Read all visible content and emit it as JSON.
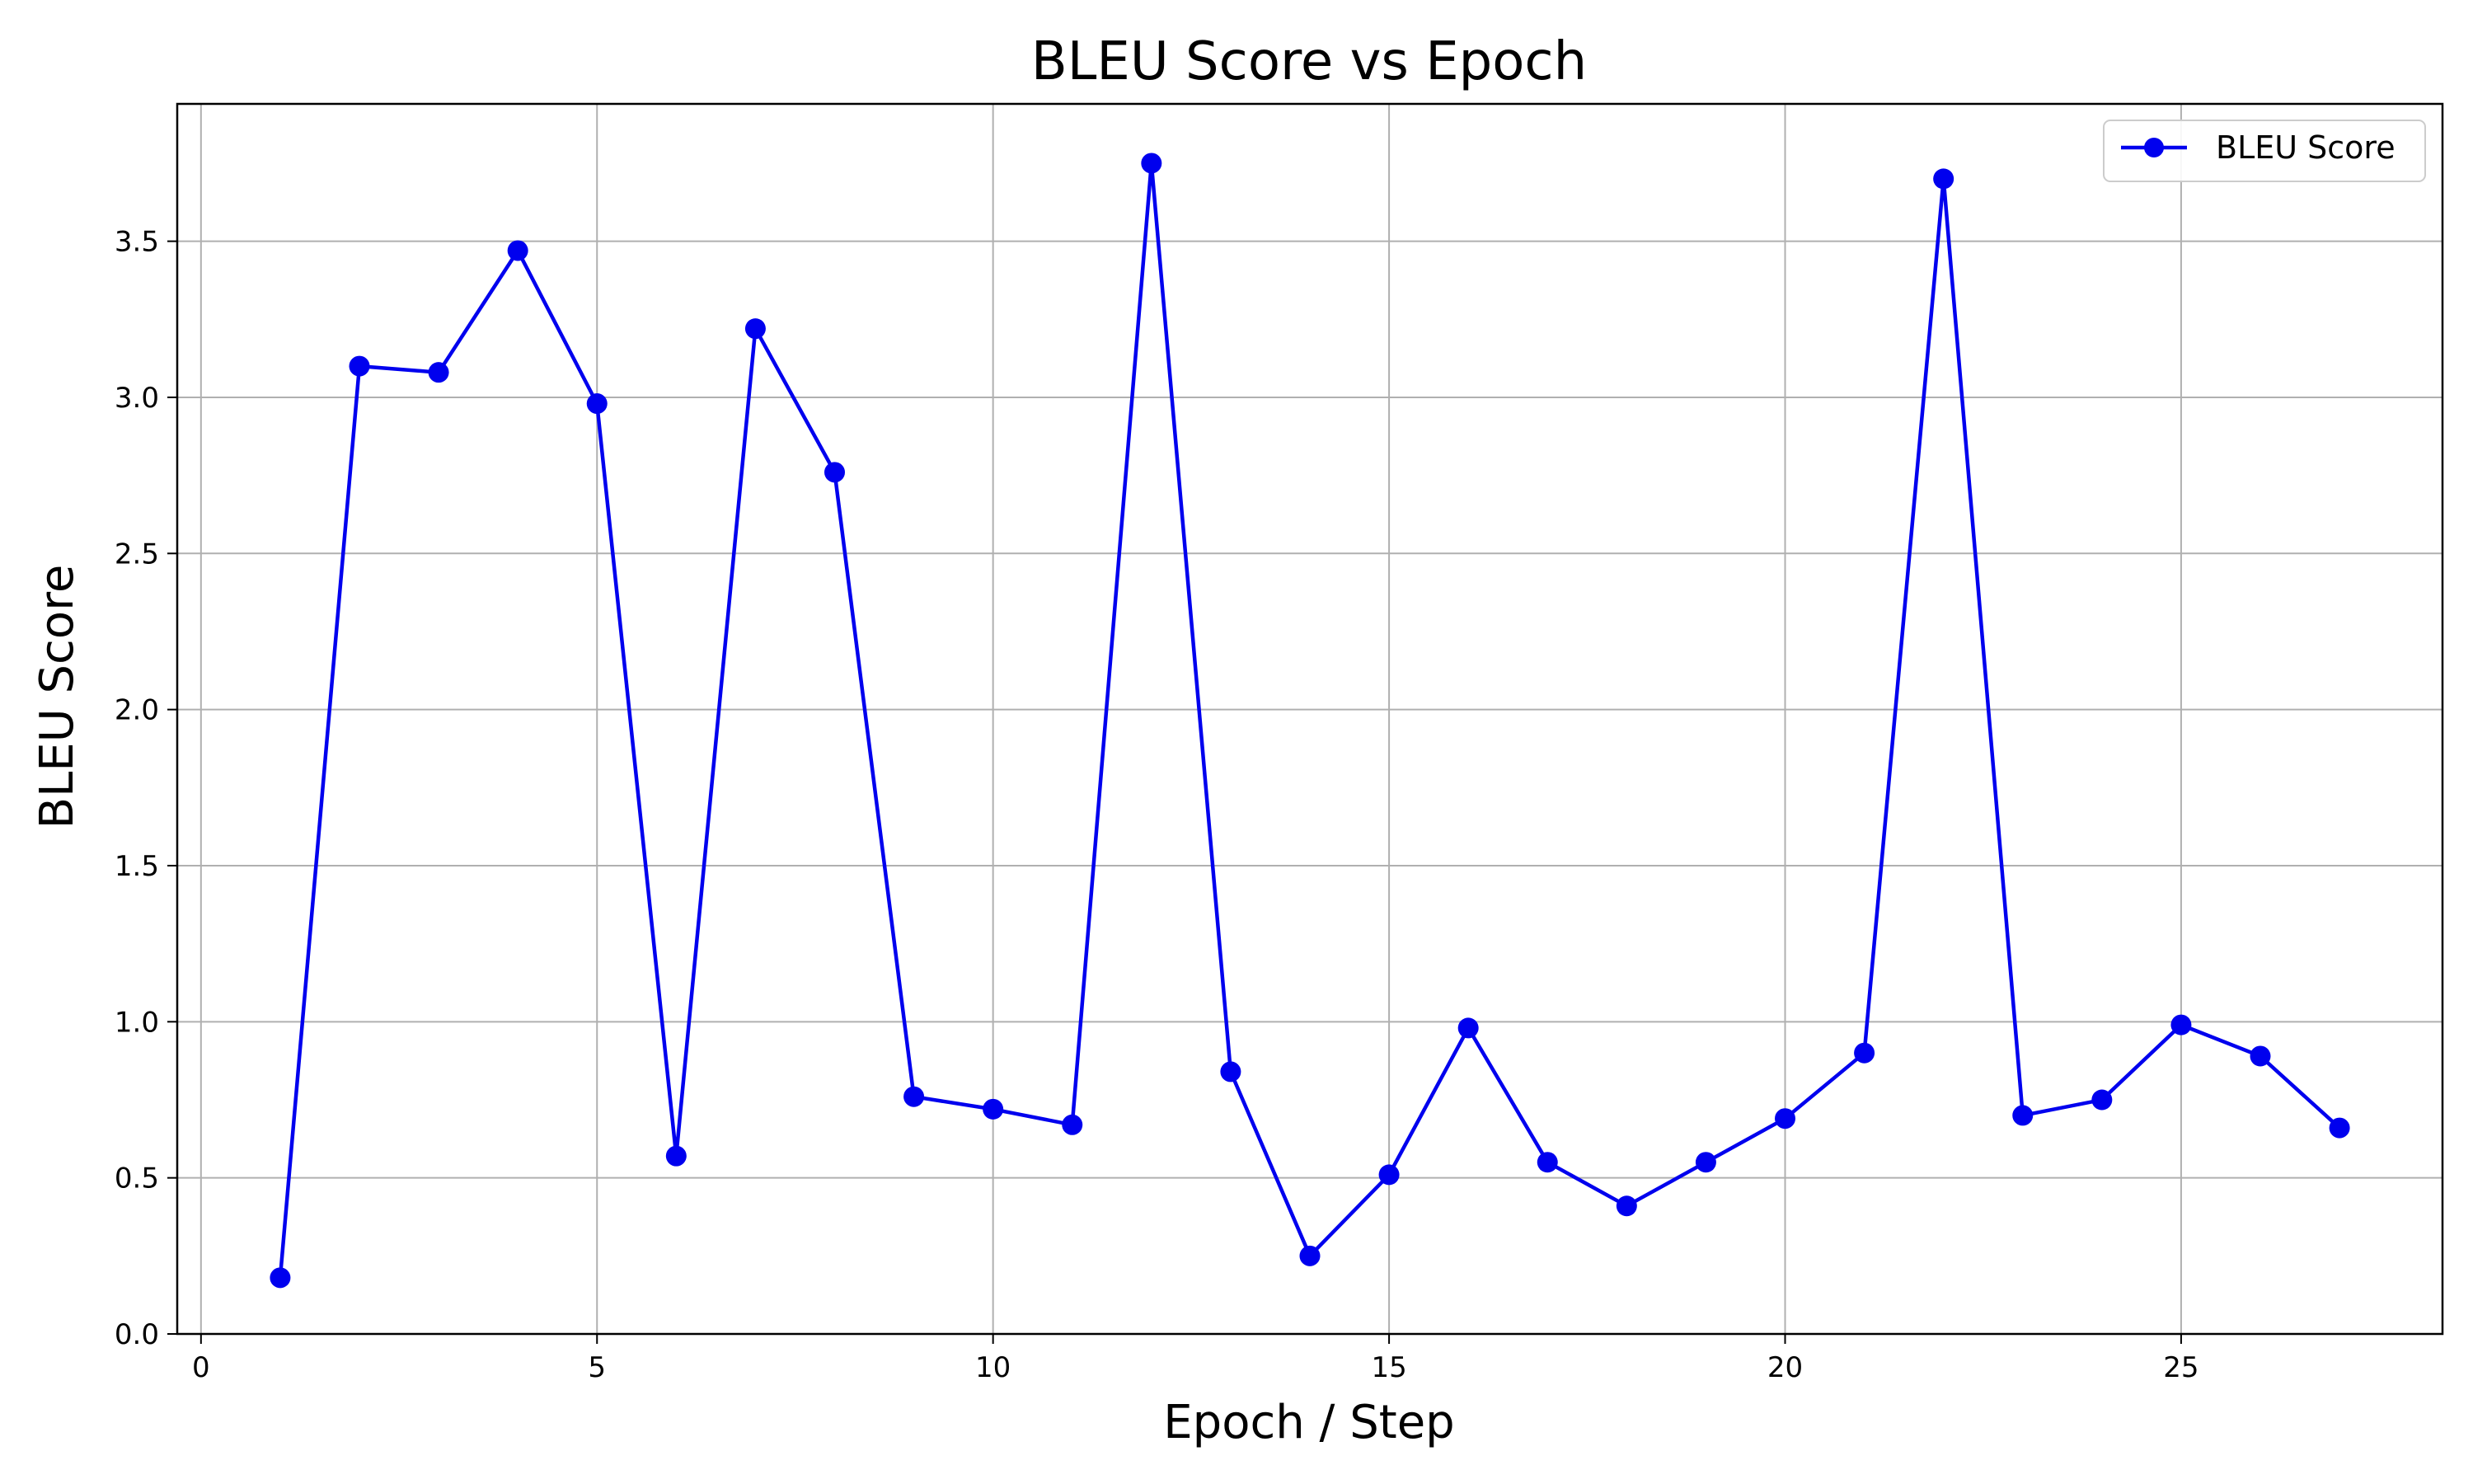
{
  "chart_data": {
    "type": "line",
    "title": "BLEU Score vs Epoch",
    "xlabel": "Epoch / Step",
    "ylabel": "BLEU Score",
    "xlim": [
      -0.3,
      28.3
    ],
    "ylim": [
      0.0,
      3.94
    ],
    "xticks": [
      0,
      5,
      10,
      15,
      20,
      25
    ],
    "yticks": [
      0.0,
      0.5,
      1.0,
      1.5,
      2.0,
      2.5,
      3.0,
      3.5
    ],
    "xtick_labels": [
      "0",
      "5",
      "10",
      "15",
      "20",
      "25"
    ],
    "ytick_labels": [
      "0.0",
      "0.5",
      "1.0",
      "1.5",
      "2.0",
      "2.5",
      "3.0",
      "3.5"
    ],
    "grid": true,
    "legend_position": "top-right",
    "series": [
      {
        "name": "BLEU Score",
        "color": "#0000ee",
        "marker": "circle",
        "x": [
          1,
          2,
          3,
          4,
          5,
          6,
          7,
          8,
          9,
          10,
          11,
          12,
          13,
          14,
          15,
          16,
          17,
          18,
          19,
          20,
          21,
          22,
          23,
          24,
          25,
          26,
          27
        ],
        "values": [
          0.18,
          3.1,
          3.08,
          3.47,
          2.98,
          0.57,
          3.22,
          2.76,
          0.76,
          0.72,
          0.67,
          3.75,
          0.84,
          0.25,
          0.51,
          0.98,
          0.55,
          0.41,
          0.55,
          0.69,
          0.9,
          3.7,
          0.7,
          0.75,
          0.99,
          0.89,
          0.66
        ]
      }
    ]
  }
}
